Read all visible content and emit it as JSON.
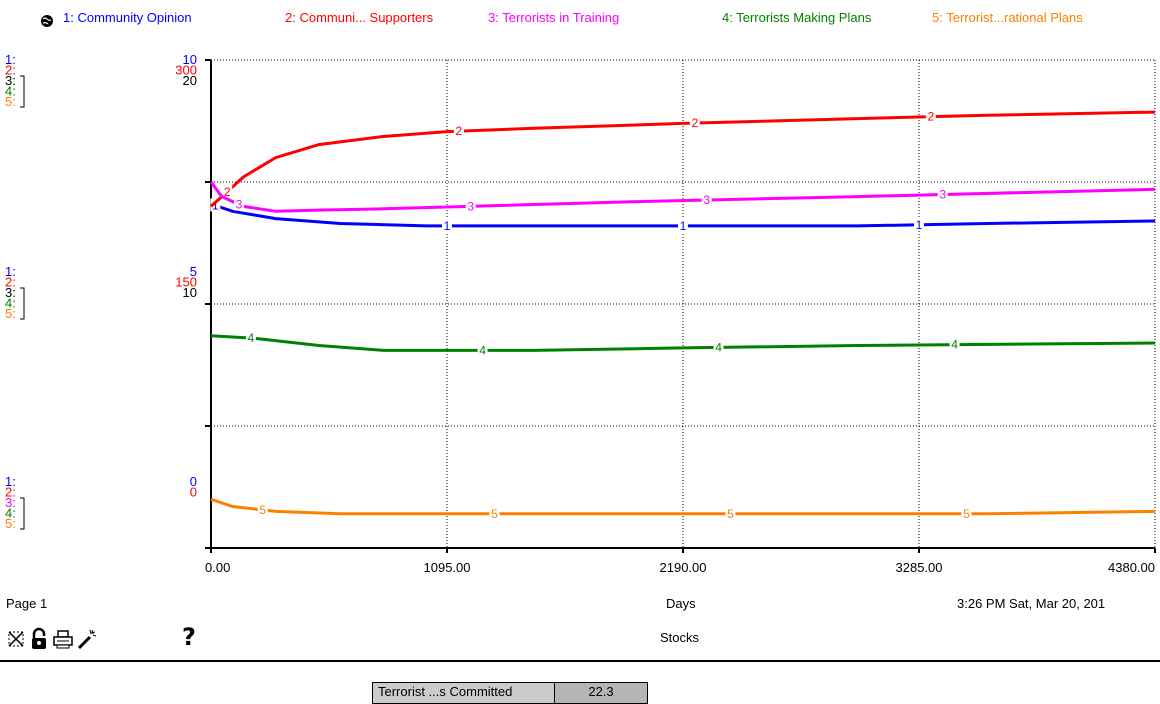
{
  "legend": {
    "items": [
      {
        "label": "1: Community Opinion",
        "color": "#0000ff"
      },
      {
        "label": "2: Communi... Supporters",
        "color": "#ff0000"
      },
      {
        "label": "3: Terrorists  in Training",
        "color": "#ff00ff"
      },
      {
        "label": "4: Terrorists Making Plans",
        "color": "#008000"
      },
      {
        "label": "5: Terrorist...rational Plans",
        "color": "#ff8000"
      }
    ]
  },
  "chart_data": {
    "type": "line",
    "xlabel": "Days",
    "title": "Stocks",
    "xlim": [
      0,
      4380
    ],
    "x_ticks": [
      "0.00",
      "1095.00",
      "2190.00",
      "3285.00",
      "4380.00"
    ],
    "grid": true,
    "scales": {
      "top": [
        {
          "label": "1:",
          "value": "10",
          "color": "#0000ff"
        },
        {
          "label": "2:",
          "value": "300",
          "color": "#ff0000"
        },
        {
          "label": "3:",
          "value": "20",
          "color": "#000000"
        },
        {
          "label": "4:",
          "value": "",
          "color": "#008000"
        },
        {
          "label": "5:",
          "value": "",
          "color": "#ff8000"
        }
      ],
      "mid": [
        {
          "label": "1:",
          "value": "5",
          "color": "#0000ff"
        },
        {
          "label": "2:",
          "value": "150",
          "color": "#ff0000"
        },
        {
          "label": "3:",
          "value": "10",
          "color": "#000000"
        },
        {
          "label": "4:",
          "value": "",
          "color": "#008000"
        },
        {
          "label": "5:",
          "value": "",
          "color": "#ff8000"
        }
      ],
      "bottom": [
        {
          "label": "1:",
          "value": "0",
          "color": "#0000ff"
        },
        {
          "label": "2:",
          "value": "0",
          "color": "#ff0000"
        },
        {
          "label": "3:",
          "value": "",
          "color": "#ff00ff"
        },
        {
          "label": "4:",
          "value": "",
          "color": "#008000"
        },
        {
          "label": "5:",
          "value": "",
          "color": "#ff8000"
        }
      ]
    },
    "series": [
      {
        "marker": "1",
        "color": "#0000ff",
        "ylim": [
          0,
          10
        ],
        "x": [
          0,
          100,
          300,
          600,
          1000,
          1500,
          2190,
          3000,
          3600,
          4380
        ],
        "y": [
          7.05,
          6.9,
          6.75,
          6.65,
          6.6,
          6.6,
          6.6,
          6.6,
          6.65,
          6.7
        ]
      },
      {
        "marker": "2",
        "color": "#ff0000",
        "ylim": [
          0,
          300
        ],
        "x": [
          0,
          150,
          300,
          500,
          800,
          1095,
          1500,
          2190,
          3000,
          3600,
          4380
        ],
        "y": [
          210,
          228,
          240,
          248,
          253,
          256,
          258,
          261,
          264,
          266,
          268
        ]
      },
      {
        "marker": "3",
        "color": "#ff00ff",
        "x": [
          0,
          50,
          150,
          300,
          500,
          800,
          1200,
          2000,
          3000,
          4380
        ],
        "y": [
          15,
          14.4,
          14.0,
          13.8,
          13.85,
          13.9,
          14.0,
          14.2,
          14.4,
          14.7
        ]
      },
      {
        "marker": "4",
        "color": "#008000",
        "x": [
          0,
          200,
          500,
          800,
          1500,
          2190,
          3000,
          4380
        ],
        "y": [
          4.35,
          4.3,
          4.15,
          4.05,
          4.05,
          4.1,
          4.15,
          4.2
        ]
      },
      {
        "marker": "5",
        "color": "#ff8000",
        "x": [
          0,
          100,
          300,
          600,
          1000,
          2190,
          3600,
          4380
        ],
        "y": [
          1.0,
          0.85,
          0.75,
          0.7,
          0.7,
          0.7,
          0.7,
          0.75
        ]
      }
    ]
  },
  "footer": {
    "page": "Page 1",
    "xlabel": "Days",
    "timestamp": "3:26 PM   Sat, Mar 20, 201",
    "title": "Stocks",
    "help": "?"
  },
  "toolbar": {
    "icons": [
      "graph-tool-icon",
      "lock-icon",
      "print-icon",
      "magic-wand-icon"
    ]
  },
  "readout": {
    "label": "Terrorist ...s Committed",
    "value": "22.3"
  }
}
